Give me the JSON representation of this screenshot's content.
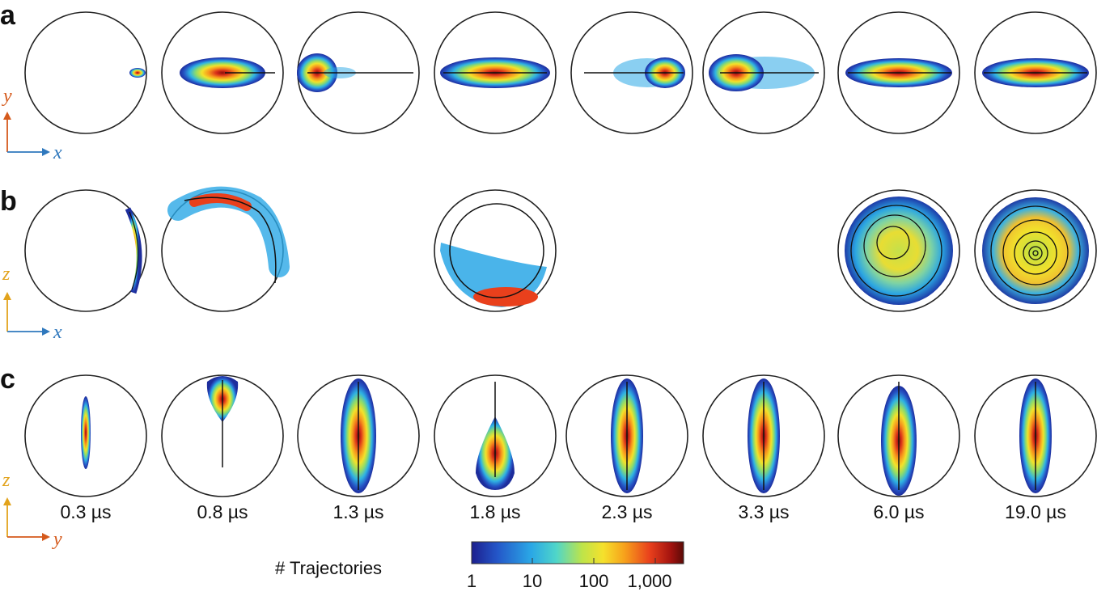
{
  "panels": [
    {
      "label": "a",
      "axes": {
        "horizontal": "x",
        "vertical": "y"
      }
    },
    {
      "label": "b",
      "axes": {
        "horizontal": "x",
        "vertical": "z"
      }
    },
    {
      "label": "c",
      "axes": {
        "horizontal": "y",
        "vertical": "z"
      }
    }
  ],
  "times": [
    "0.3 µs",
    "0.8 µs",
    "1.3 µs",
    "1.8 µs",
    "2.3 µs",
    "3.3 µs",
    "6.0 µs",
    "19.0 µs"
  ],
  "colorbar": {
    "title": "# Trajectories",
    "ticks": [
      "1",
      "10",
      "100",
      "1,000"
    ],
    "colors": [
      "#1c1f8e",
      "#2456c8",
      "#2aa7e6",
      "#4fd6c9",
      "#bde44a",
      "#f5e12c",
      "#f7a21b",
      "#e9401c",
      "#a3130f",
      "#5a0a07"
    ]
  },
  "axis_colors": {
    "x": "#2f78bd",
    "y": "#d55a1c",
    "z": "#e2a31c"
  }
}
